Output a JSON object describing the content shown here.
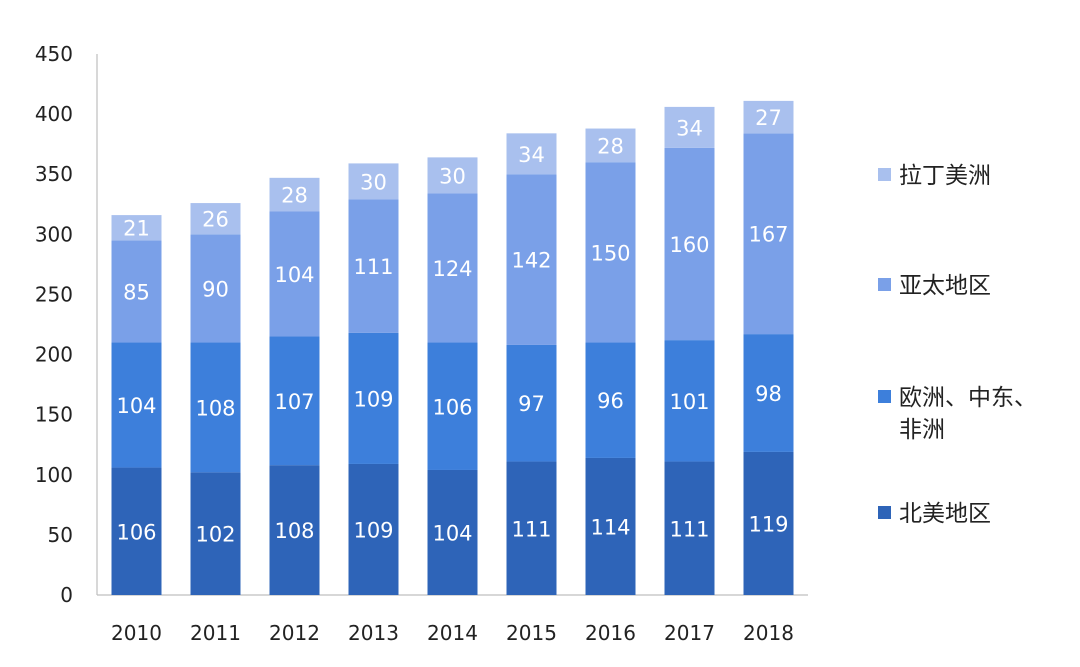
{
  "chart_data": {
    "type": "bar",
    "stacked": true,
    "categories": [
      "2010",
      "2011",
      "2012",
      "2013",
      "2014",
      "2015",
      "2016",
      "2017",
      "2018"
    ],
    "series": [
      {
        "name": "北美地区",
        "color": "#2E64B8",
        "values": [
          106,
          102,
          108,
          109,
          104,
          111,
          114,
          111,
          119
        ]
      },
      {
        "name": "欧洲、中东、非洲",
        "color": "#3D7FDB",
        "values": [
          104,
          108,
          107,
          109,
          106,
          97,
          96,
          101,
          98
        ]
      },
      {
        "name": "亚太地区",
        "color": "#7AA0E8",
        "values": [
          85,
          90,
          104,
          111,
          124,
          142,
          150,
          160,
          167
        ]
      },
      {
        "name": "拉丁美洲",
        "color": "#A9C0EE",
        "values": [
          21,
          26,
          28,
          30,
          30,
          34,
          28,
          34,
          27
        ]
      }
    ],
    "ylim": [
      0,
      450
    ],
    "yticks": [
      0,
      50,
      100,
      150,
      200,
      250,
      300,
      350,
      400,
      450
    ],
    "legend_position": "right",
    "grid": false
  }
}
